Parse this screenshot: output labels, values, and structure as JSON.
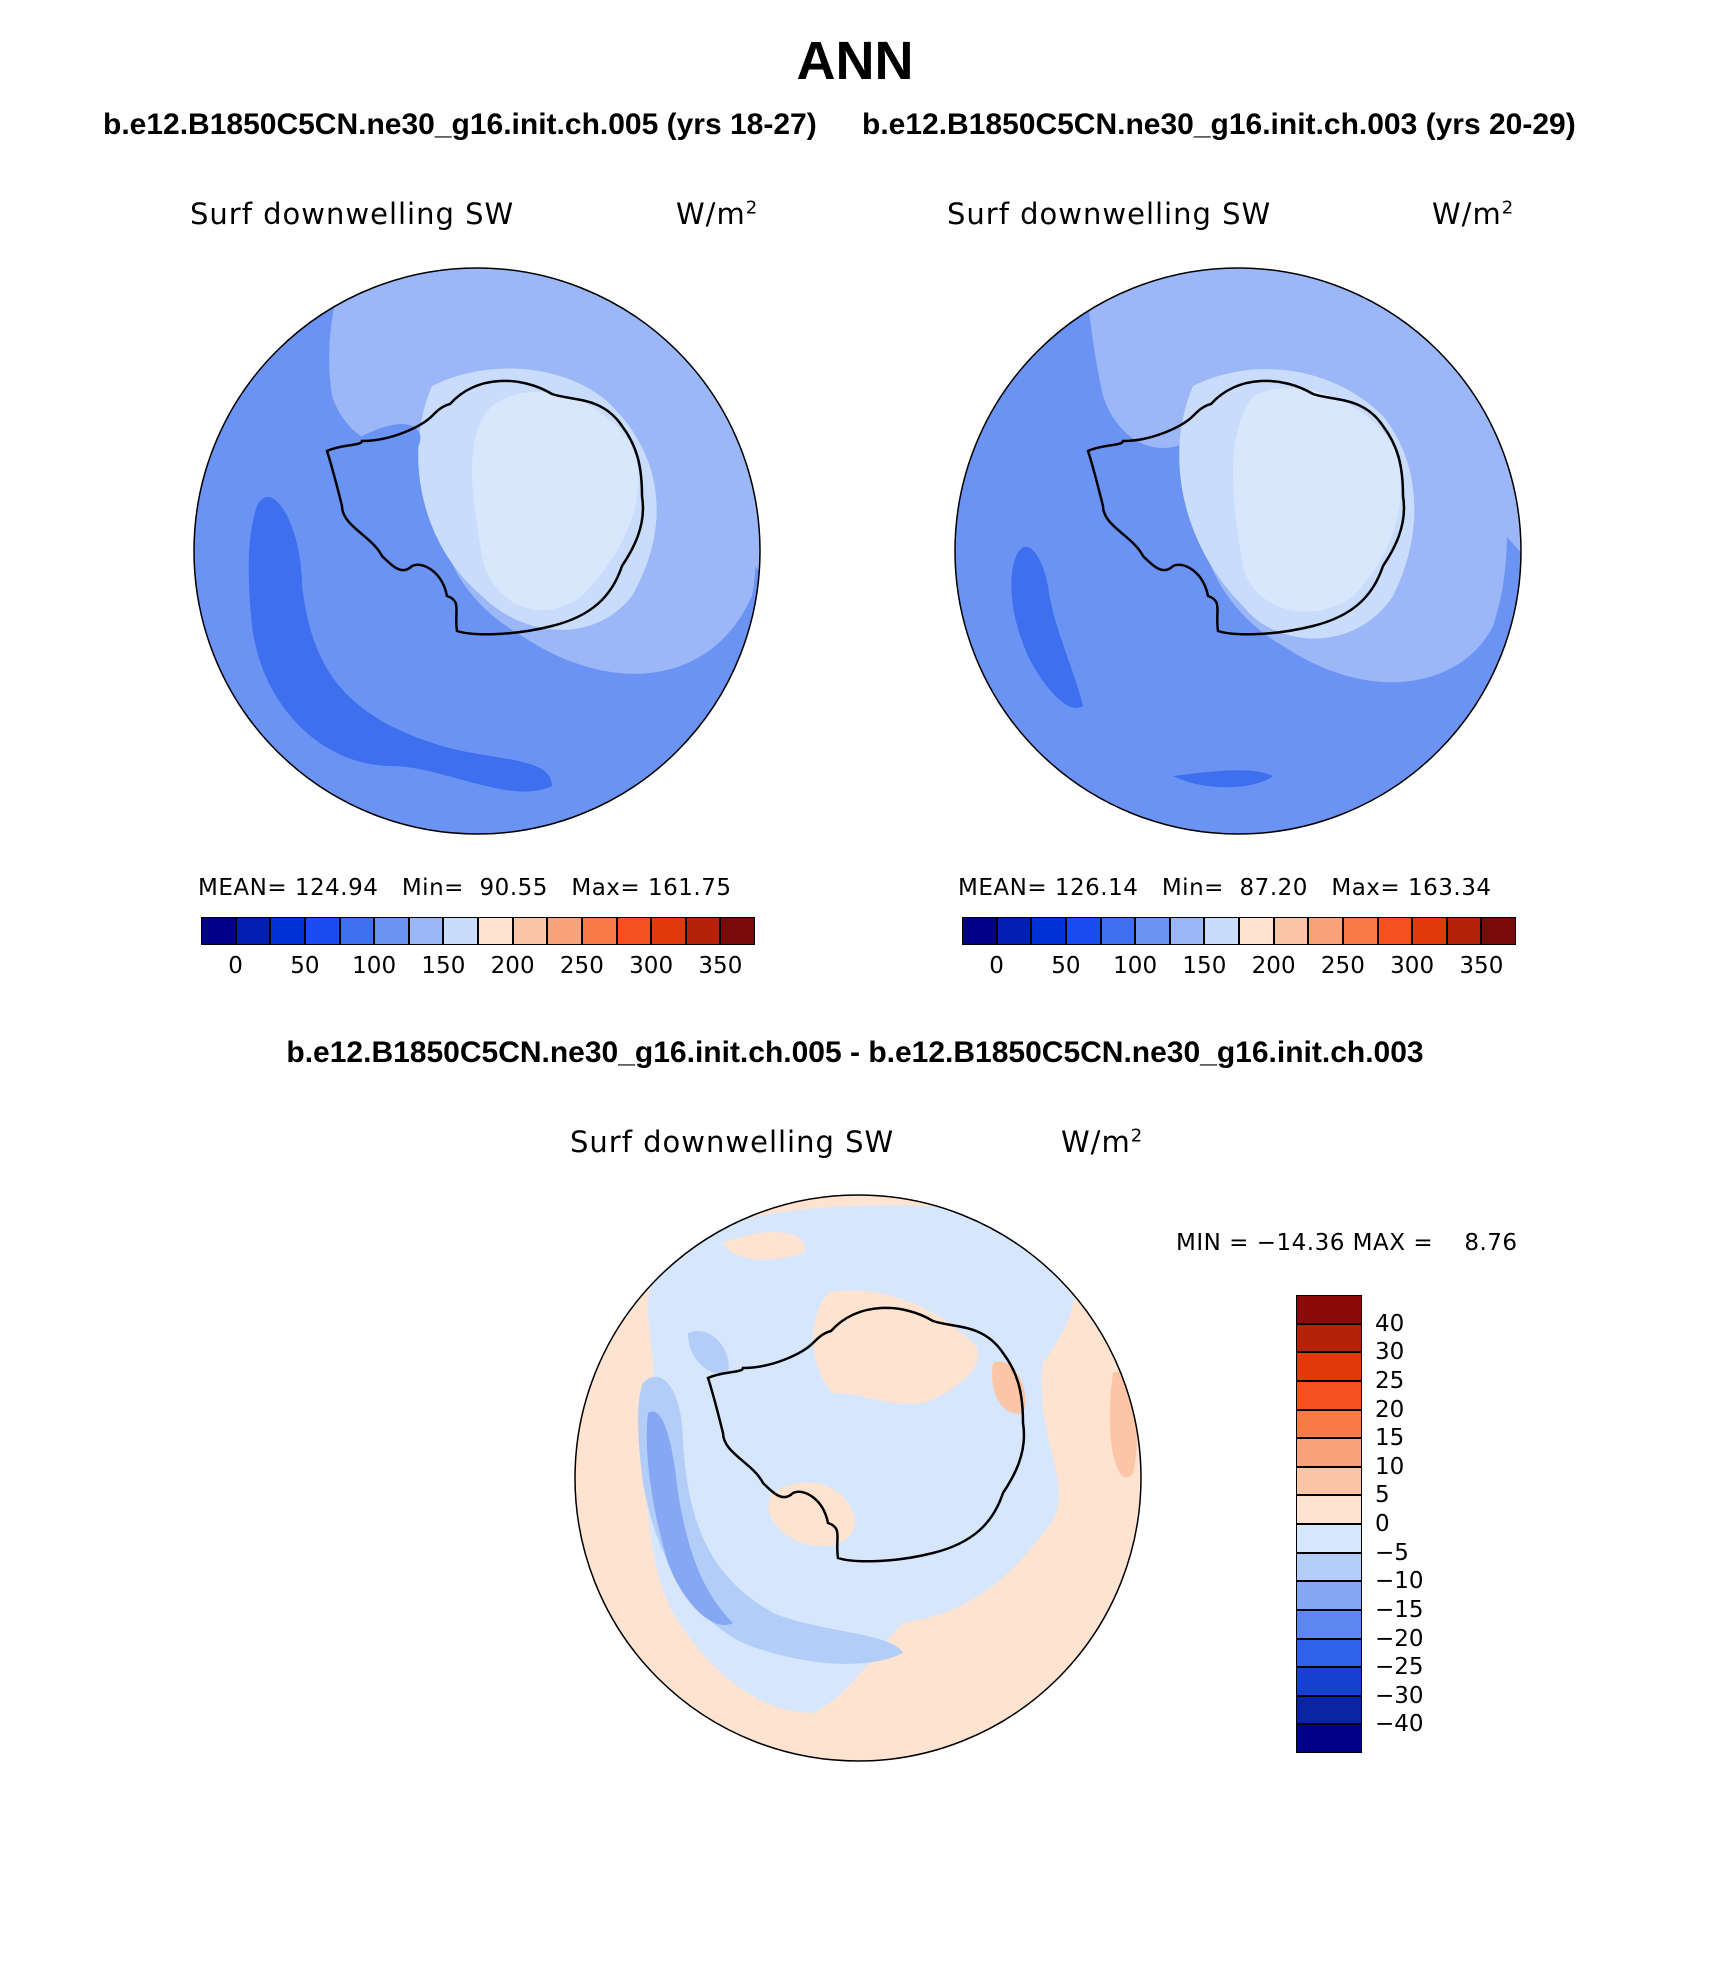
{
  "header": {
    "title": "ANN",
    "case_left": "b.e12.B1850C5CN.ne30_g16.init.ch.005 (yrs 18-27)",
    "case_right": "b.e12.B1850C5CN.ne30_g16.init.ch.003 (yrs 20-29)",
    "diff_title": "b.e12.B1850C5CN.ne30_g16.init.ch.005 - b.e12.B1850C5CN.ne30_g16.init.ch.003"
  },
  "panels": [
    {
      "variable": "Surf downwelling SW",
      "units": "W/m",
      "units_sup": "2",
      "mean_label": "MEAN=",
      "mean": "124.94",
      "min_label": "Min=",
      "min": "90.55",
      "max_label": "Max=",
      "max": "161.75"
    },
    {
      "variable": "Surf downwelling SW",
      "units": "W/m",
      "units_sup": "2",
      "mean_label": "MEAN=",
      "mean": "126.14",
      "min_label": "Min=",
      "min": "87.20",
      "max_label": "Max=",
      "max": "163.34"
    }
  ],
  "diff_panel": {
    "variable": "Surf downwelling SW",
    "units": "W/m",
    "units_sup": "2",
    "min_label": "MIN =",
    "min": "−14.36",
    "max_label": "MAX =",
    "max": "8.76"
  },
  "colorbar_abs": {
    "ticks": [
      "0",
      "50",
      "100",
      "150",
      "200",
      "250",
      "300",
      "350"
    ],
    "colors": [
      "#00008b",
      "#001fb0",
      "#0033d6",
      "#1a4cf0",
      "#3d6fee",
      "#6b93f3",
      "#9bb7f7",
      "#c9dcfb",
      "#fde3d0",
      "#fcc6a6",
      "#fba27a",
      "#f97a47",
      "#f4511e",
      "#e03a0a",
      "#b52209",
      "#7a0a0a"
    ]
  },
  "colorbar_diff": {
    "ticks": [
      "40",
      "30",
      "25",
      "20",
      "15",
      "10",
      "5",
      "0",
      "−5",
      "−10",
      "−15",
      "−20",
      "−25",
      "−30",
      "−40"
    ],
    "colors": [
      "#8b0a0a",
      "#b52209",
      "#e03a0a",
      "#f4511e",
      "#f97a47",
      "#fba27a",
      "#fcc6a6",
      "#fde3d0",
      "#d6e6fc",
      "#b3cdf9",
      "#86a8f4",
      "#5d86f0",
      "#3061ea",
      "#1640d0",
      "#0a24a6",
      "#00008b"
    ]
  },
  "map_colors": {
    "abs_low": "#3d6fee",
    "abs_mid": "#6b93f3",
    "abs_midlight": "#9bb7f7",
    "abs_light": "#c9dcfb",
    "abs_lightest": "#d9e7fc",
    "diff_neg5": "#d6e6fc",
    "diff_neg10": "#b3cdf9",
    "diff_neg15": "#86a8f4",
    "diff_pos5": "#fde3d0",
    "diff_pos10": "#fcc6a6",
    "coast": "#000000"
  }
}
